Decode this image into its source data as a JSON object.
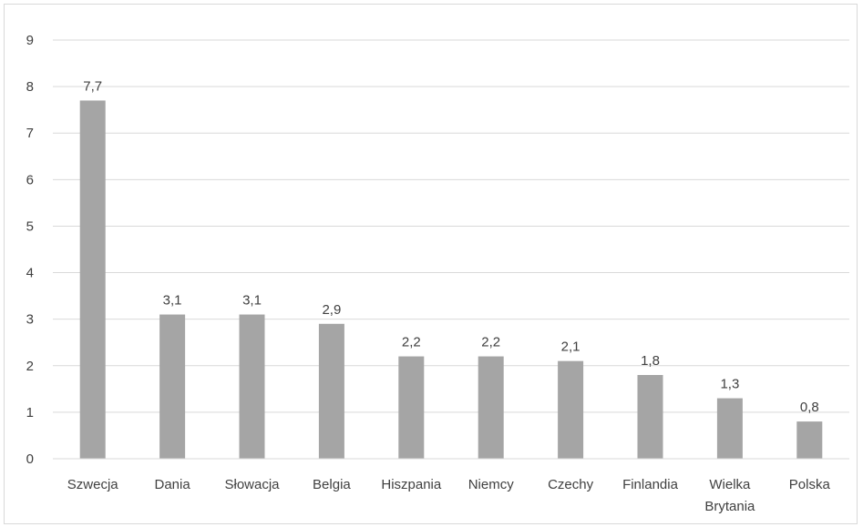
{
  "chart_data": {
    "type": "bar",
    "title": "",
    "xlabel": "",
    "ylabel": "",
    "categories": [
      [
        "Szwecja"
      ],
      [
        "Dania"
      ],
      [
        "Słowacja"
      ],
      [
        "Belgia"
      ],
      [
        "Hiszpania"
      ],
      [
        "Niemcy"
      ],
      [
        "Czechy"
      ],
      [
        "Finlandia"
      ],
      [
        "Wielka",
        "Brytania"
      ],
      [
        "Polska"
      ]
    ],
    "values": [
      7.7,
      3.1,
      3.1,
      2.9,
      2.2,
      2.2,
      2.1,
      1.8,
      1.3,
      0.8
    ],
    "value_labels": [
      "7,7",
      "3,1",
      "3,1",
      "2,9",
      "2,2",
      "2,2",
      "2,1",
      "1,8",
      "1,3",
      "0,8"
    ],
    "ylim": [
      0,
      9
    ],
    "yticks": [
      "0",
      "1",
      "2",
      "3",
      "4",
      "5",
      "6",
      "7",
      "8",
      "9"
    ],
    "grid": true,
    "legend": "none",
    "colors": {
      "bar": "#a5a5a5",
      "grid": "#d9d9d9",
      "text": "#404040"
    }
  }
}
